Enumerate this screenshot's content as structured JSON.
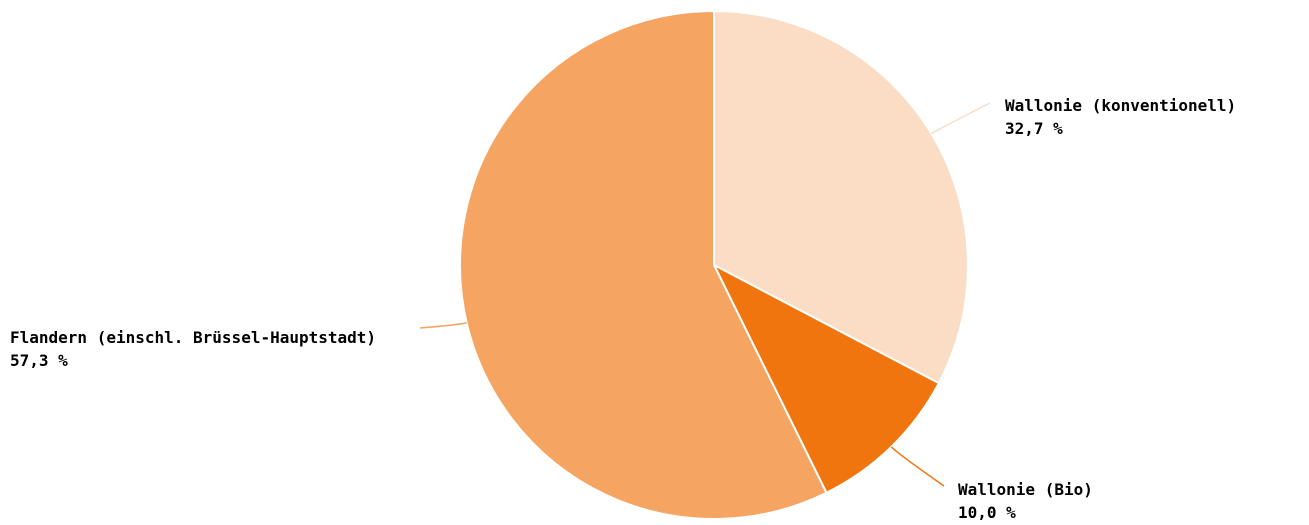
{
  "chart_data": {
    "type": "pie",
    "title": "",
    "slices": [
      {
        "label": "Wallonie (konventionell)",
        "value": 32.7,
        "value_text": "32,7 %",
        "color": "#FBDDC5"
      },
      {
        "label": "Wallonie (Bio)",
        "value": 10.0,
        "value_text": "10,0 %",
        "color": "#F1750E"
      },
      {
        "label": "Flandern (einschl. Brüssel-Hauptstadt)",
        "value": 57.3,
        "value_text": "57,3 %",
        "color": "#F5A461"
      }
    ],
    "start_direction": "12 o'clock",
    "direction": "clockwise",
    "legend": "none (direct labels)"
  }
}
